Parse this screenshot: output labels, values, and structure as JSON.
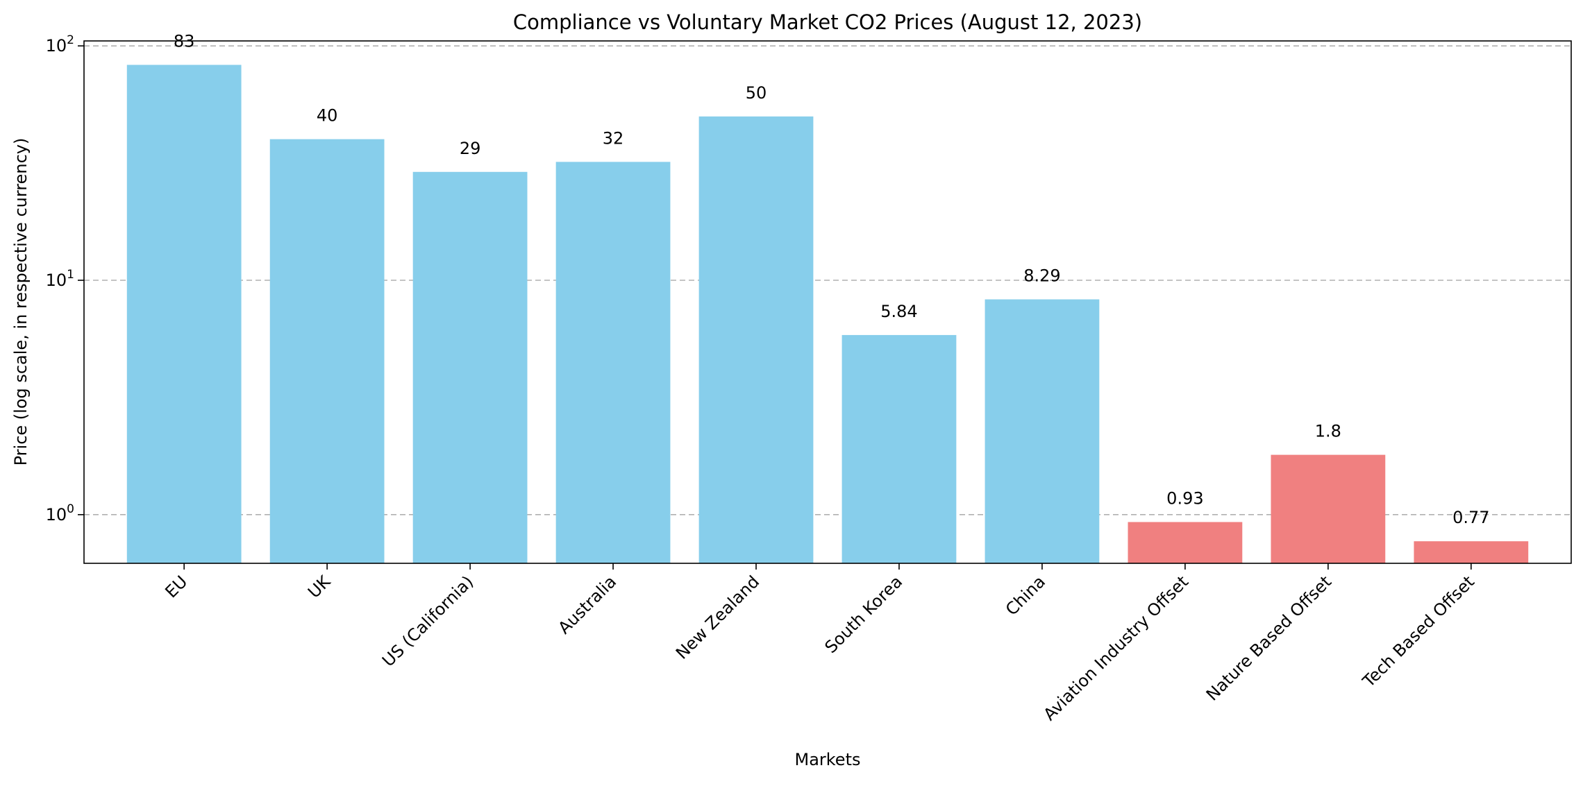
{
  "chart_data": {
    "type": "bar",
    "title": "Compliance vs Voluntary Market CO2 Prices (August 12, 2023)",
    "xlabel": "Markets",
    "ylabel": "Price (log scale, in respective currency)",
    "y_scale": "log",
    "ylim": [
      0.62,
      105
    ],
    "grid": "y-major-dashed",
    "legend": "none",
    "y_ticks": [
      {
        "base": "10",
        "exp": "0",
        "value": 1
      },
      {
        "base": "10",
        "exp": "1",
        "value": 10
      },
      {
        "base": "10",
        "exp": "2",
        "value": 100
      }
    ],
    "categories": [
      "EU",
      "UK",
      "US (California)",
      "Australia",
      "New Zealand",
      "South Korea",
      "China",
      "Aviation Industry Offset",
      "Nature Based Offset",
      "Tech Based Offset"
    ],
    "values": [
      83,
      40,
      29,
      32,
      50,
      5.84,
      8.29,
      0.93,
      1.8,
      0.77
    ],
    "value_labels": [
      "83",
      "40",
      "29",
      "32",
      "50",
      "5.84",
      "8.29",
      "0.93",
      "1.8",
      "0.77"
    ],
    "groups": [
      "compliance",
      "compliance",
      "compliance",
      "compliance",
      "compliance",
      "compliance",
      "compliance",
      "voluntary",
      "voluntary",
      "voluntary"
    ],
    "colors": {
      "compliance": "#87ceeb",
      "voluntary": "#f08080",
      "grid": "#b0b0b0",
      "axis": "#000000"
    }
  }
}
